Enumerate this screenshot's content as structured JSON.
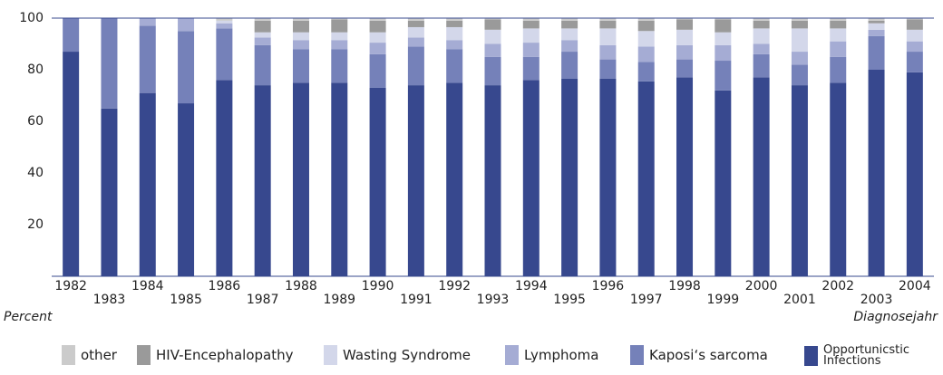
{
  "chart_data": {
    "type": "stacked-bar",
    "categories": [
      "1982",
      "1983",
      "1984",
      "1985",
      "1986",
      "1987",
      "1988",
      "1989",
      "1990",
      "1991",
      "1992",
      "1993",
      "1994",
      "1995",
      "1996",
      "1997",
      "1998",
      "1999",
      "2000",
      "2001",
      "2002",
      "2003",
      "2004"
    ],
    "series": [
      {
        "name": "Opportunicstic Infections",
        "color": "#37488e",
        "values": [
          87,
          65,
          71,
          67,
          76,
          74,
          75,
          75,
          73,
          74,
          75,
          74,
          76,
          76.5,
          76.5,
          75.5,
          77,
          72,
          77,
          74,
          75,
          80,
          79
        ]
      },
      {
        "name": "Kaposi‘s sarcoma",
        "color": "#7581b9",
        "values": [
          13,
          35,
          26,
          28,
          20,
          15.5,
          13,
          13,
          13,
          15,
          13,
          11,
          9,
          10.5,
          7.5,
          7.5,
          7,
          11.5,
          9,
          8,
          10,
          13,
          8
        ]
      },
      {
        "name": "Lymphoma",
        "color": "#a5acd4",
        "values": [
          0,
          0,
          3,
          5,
          2,
          3,
          3.5,
          3.5,
          4.5,
          3.5,
          3.5,
          5,
          5.5,
          4.5,
          5.5,
          6,
          5.5,
          6,
          4,
          5,
          6,
          2.5,
          4
        ]
      },
      {
        "name": "Wasting Syndrome",
        "color": "#d3d7ea",
        "values": [
          0,
          0,
          0,
          0,
          1,
          2,
          3,
          3,
          4,
          4,
          5,
          5.5,
          5.5,
          4.5,
          6.5,
          6,
          6,
          5,
          6,
          9,
          5,
          2.5,
          4.5
        ]
      },
      {
        "name": "HIV-Encephalopathy",
        "color": "#9a9a9a",
        "values": [
          0,
          0,
          0,
          0,
          0,
          4.5,
          4.5,
          5,
          4.5,
          2.5,
          2.5,
          4,
          3,
          3,
          3,
          4,
          4,
          5,
          3,
          3,
          3,
          1,
          4
        ]
      },
      {
        "name": "other",
        "color": "#cbcbcb",
        "values": [
          0,
          0,
          0,
          0,
          1,
          1,
          1,
          0.5,
          1,
          1,
          1,
          0.5,
          1,
          1,
          1,
          1,
          0.5,
          0.5,
          1,
          1,
          1,
          1,
          0.5
        ]
      }
    ],
    "ylabel": "Percent",
    "xlabel": "Diagnosejahr",
    "ylim": [
      0,
      100
    ],
    "yticks": [
      20,
      40,
      60,
      80,
      100
    ]
  }
}
